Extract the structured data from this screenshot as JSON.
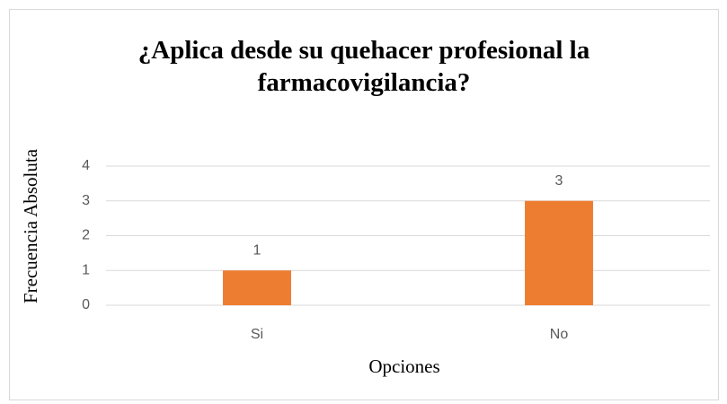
{
  "chart_data": {
    "type": "bar",
    "title": "¿Aplica desde su quehacer profesional la farmacovigilancia?",
    "x_label": "Opciones",
    "y_label": "Frecuencia Absoluta",
    "categories": [
      "Si",
      "No"
    ],
    "values": [
      1,
      3
    ],
    "color": "#ed7d31",
    "ylim": [
      0,
      4
    ],
    "yticks": [
      0,
      1,
      2,
      3,
      4
    ],
    "grid": true
  }
}
